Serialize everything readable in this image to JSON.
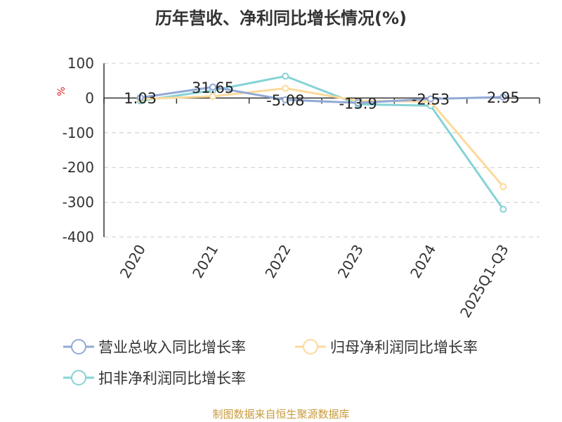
{
  "chart_data": {
    "type": "line",
    "title": "历年营收、净利同比增长情况(%)",
    "ylabel": "%",
    "categories": [
      "2020",
      "2021",
      "2022",
      "2023",
      "2024",
      "2025Q1-Q3"
    ],
    "ylim": [
      -400,
      100
    ],
    "yticks": [
      100,
      0,
      -100,
      -200,
      -300,
      -400
    ],
    "grid": true,
    "legend_position": "bottom",
    "series": [
      {
        "name": "营业总收入同比增长率",
        "color": "#91a9d6",
        "values": [
          1.03,
          31.65,
          -5.08,
          -13.9,
          -2.53,
          2.95
        ],
        "labels": [
          "1.03",
          "31.65",
          "-5.08",
          "-13.9",
          "-2.53",
          "2.95"
        ]
      },
      {
        "name": "归母净利润同比增长率",
        "color": "#fdd99a",
        "values": [
          -3,
          5,
          28,
          -8,
          -10,
          -255
        ]
      },
      {
        "name": "扣非净利润同比增长率",
        "color": "#86d3d6",
        "values": [
          -8,
          22,
          63,
          -18,
          -22,
          -320
        ]
      }
    ]
  },
  "footer": {
    "source": "制图数据来自恒生聚源数据库"
  }
}
